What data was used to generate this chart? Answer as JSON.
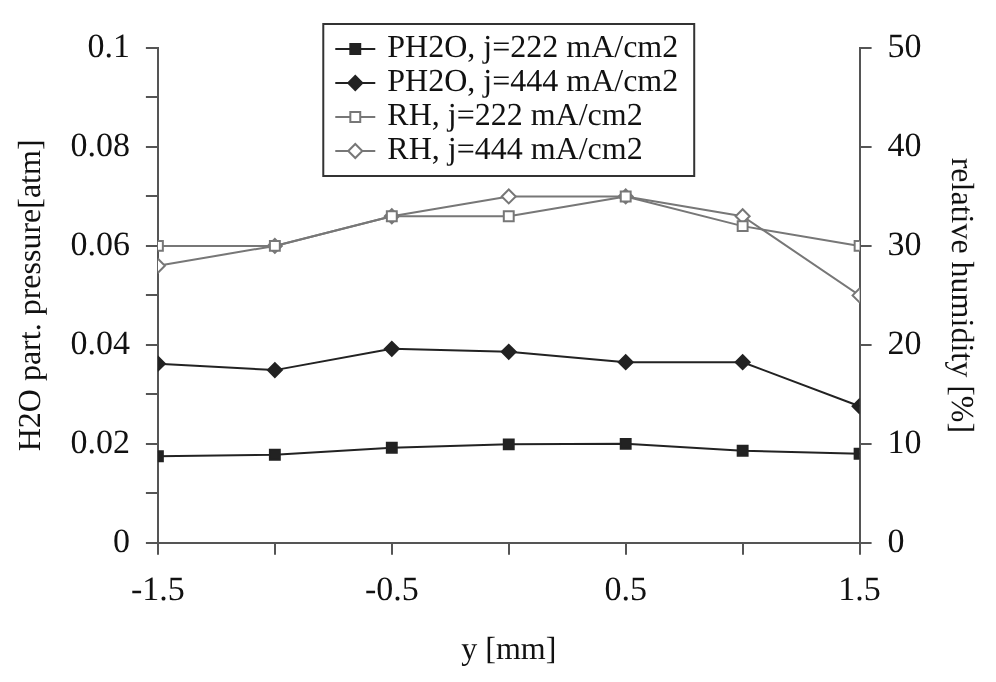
{
  "chart_data": {
    "type": "line",
    "xlabel": "y [mm]",
    "ylabel": "H2O part. pressure[atm]",
    "y2label": "relative humidity [%]",
    "x": [
      -1.5,
      -1,
      -0.5,
      0,
      0.5,
      1,
      1.5
    ],
    "series": [
      {
        "name": "PH2O, j=222 mA/cm2",
        "color": "#222222",
        "marker": "square",
        "values": [
          0.0175,
          0.0178,
          0.0192,
          0.0199,
          0.02,
          0.0186,
          0.018
        ]
      },
      {
        "name": "PH2O, j=444 mA/cm2",
        "color": "#222222",
        "marker": "diamond",
        "values": [
          0.0362,
          0.0349,
          0.0392,
          0.0386,
          0.0365,
          0.0365,
          0.0276
        ]
      },
      {
        "name": "RH, j=222 mA/cm2",
        "color": "#777777",
        "marker": "square",
        "axis": "y2",
        "values": [
          30,
          30,
          33,
          33,
          35,
          32,
          30
        ]
      },
      {
        "name": "RH, j=444 mA/cm2",
        "color": "#777777",
        "marker": "diamond",
        "axis": "y2",
        "values": [
          28,
          30,
          33,
          35,
          35,
          33,
          25
        ]
      }
    ],
    "xlim": [
      -1.5,
      1.5
    ],
    "xticks": [
      -1.5,
      {
        "value": -1,
        "label": null
      },
      -0.5,
      {
        "value": 0,
        "label": null
      },
      0.5,
      {
        "value": 1,
        "label": null
      },
      1.5
    ],
    "ylim": [
      0,
      0.1
    ],
    "yticks": [
      0,
      {
        "value": 0.01,
        "label": null
      },
      0.02,
      {
        "value": 0.03,
        "label": null
      },
      0.04,
      {
        "value": 0.05,
        "label": null
      },
      0.06,
      {
        "value": 0.07,
        "label": null
      },
      0.08,
      {
        "value": 0.09,
        "label": null
      },
      0.1
    ],
    "y2lim": [
      0,
      50
    ],
    "y2ticks": [
      0,
      10,
      20,
      30,
      40,
      50
    ],
    "grid": false,
    "legend": "top"
  }
}
